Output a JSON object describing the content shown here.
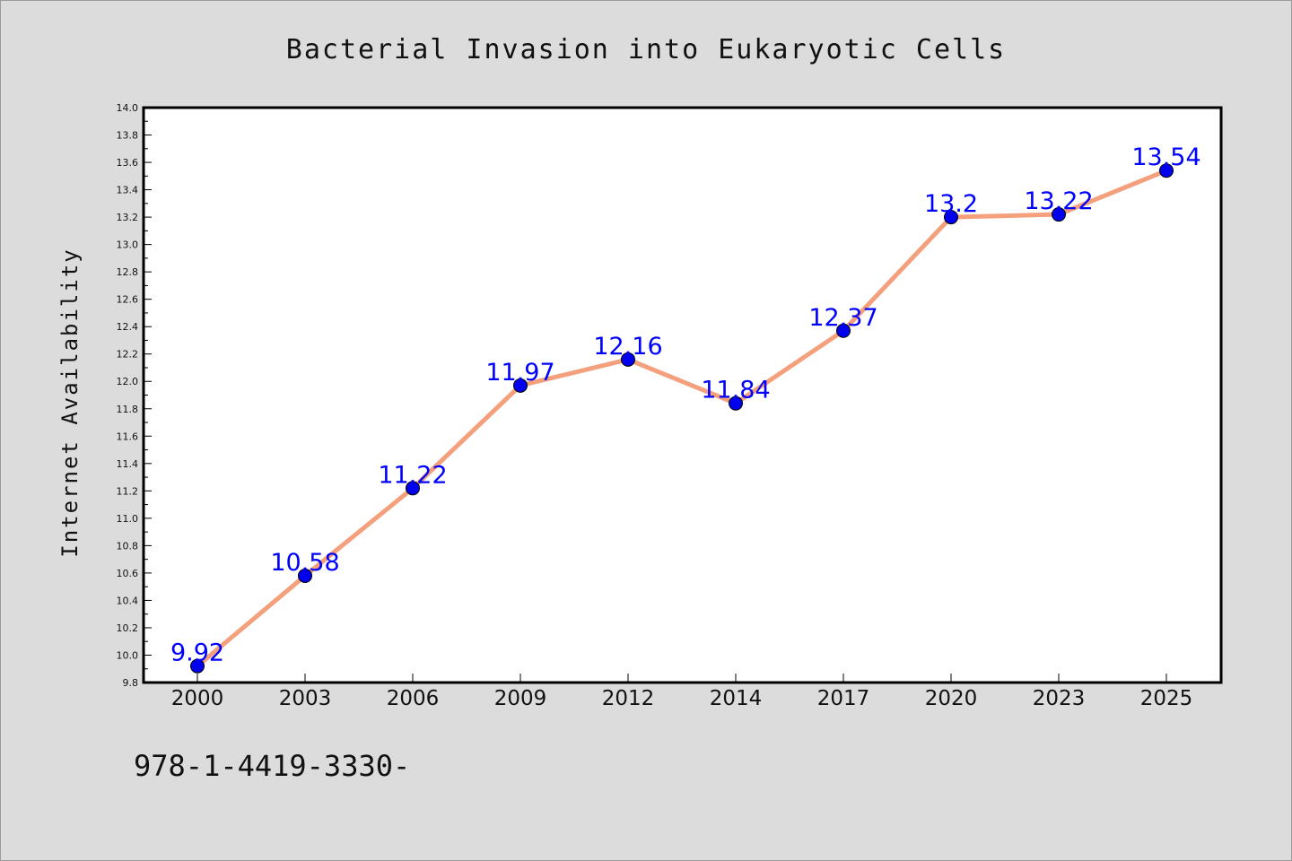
{
  "chart_data": {
    "type": "line",
    "title": "Bacterial Invasion into Eukaryotic Cells",
    "xlabel": "",
    "ylabel": "Internet Availability",
    "categories": [
      "2000",
      "2003",
      "2006",
      "2009",
      "2012",
      "2014",
      "2017",
      "2020",
      "2023",
      "2025"
    ],
    "values": [
      9.92,
      10.58,
      11.22,
      11.97,
      12.16,
      11.84,
      12.37,
      13.2,
      13.22,
      13.54
    ],
    "data_labels": [
      "9.92",
      "10.58",
      "11.22",
      "11.97",
      "12.16",
      "11.84",
      "12.37",
      "13.2",
      "13.22",
      "13.54"
    ],
    "ylim": [
      9.8,
      14.0
    ],
    "yticks": [
      "9.8",
      "10.0",
      "10.2",
      "10.4",
      "10.6",
      "10.8",
      "11.0",
      "11.2",
      "11.4",
      "11.6",
      "11.8",
      "12.0",
      "12.2",
      "12.4",
      "12.6",
      "12.8",
      "13.0",
      "13.2",
      "13.4",
      "13.6",
      "13.8",
      "14.0"
    ],
    "grid": false,
    "line_color": "#f4a07c",
    "marker_color": "#0000ee",
    "label_color": "#0000ff"
  },
  "footer_text": "978-1-4419-3330-"
}
